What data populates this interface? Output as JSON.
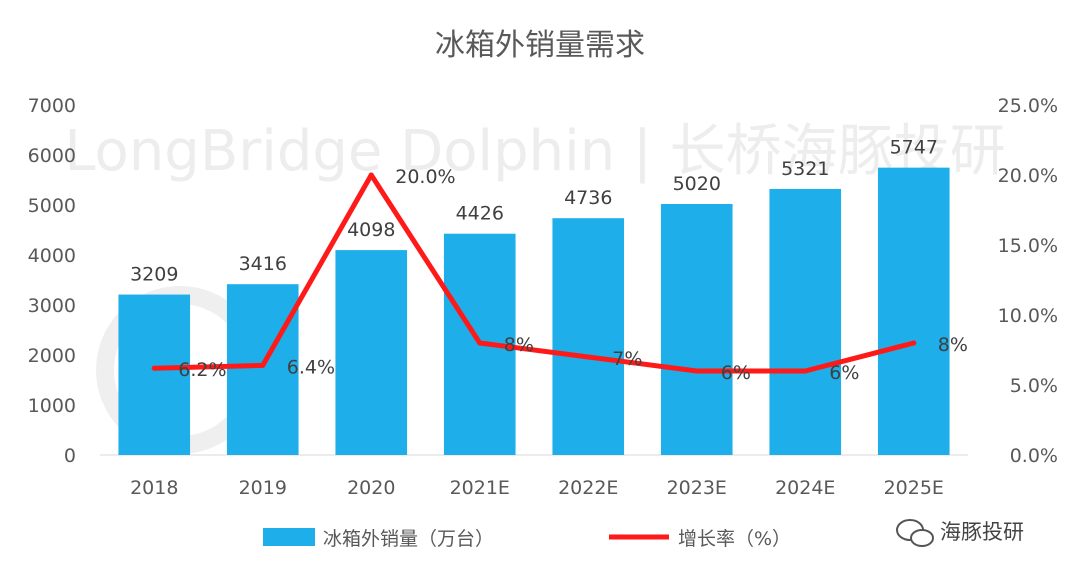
{
  "chart_data": {
    "type": "bar",
    "title": "冰箱外销量需求",
    "categories": [
      "2018",
      "2019",
      "2020",
      "2021E",
      "2022E",
      "2023E",
      "2024E",
      "2025E"
    ],
    "series": [
      {
        "name": "冰箱外销量（万台）",
        "type": "bar",
        "axis": "left",
        "color": "#1eaee9",
        "values": [
          3209,
          3416,
          4098,
          4426,
          4736,
          5020,
          5321,
          5747
        ],
        "labels": [
          "3209",
          "3416",
          "4098",
          "4426",
          "4736",
          "5020",
          "5321",
          "5747"
        ]
      },
      {
        "name": "增长率（%）",
        "type": "line",
        "axis": "right",
        "color": "#ff1a1a",
        "values": [
          6.2,
          6.4,
          20.0,
          8,
          7,
          6,
          6,
          8
        ],
        "labels": [
          "6.2%",
          "6.4%",
          "20.0%",
          "8%",
          "7%",
          "6%",
          "6%",
          "8%"
        ]
      }
    ],
    "y_left": {
      "min": 0,
      "max": 7000,
      "ticks": [
        "0",
        "1000",
        "2000",
        "3000",
        "4000",
        "5000",
        "6000",
        "7000"
      ]
    },
    "y_right": {
      "min": 0,
      "max": 25,
      "ticks": [
        "0.0%",
        "5.0%",
        "10.0%",
        "15.0%",
        "20.0%",
        "25.0%"
      ]
    },
    "grid": false,
    "legend_position": "bottom"
  },
  "watermark": "LongBridge Dolphin | 长桥海豚投研",
  "brand": "海豚投研"
}
